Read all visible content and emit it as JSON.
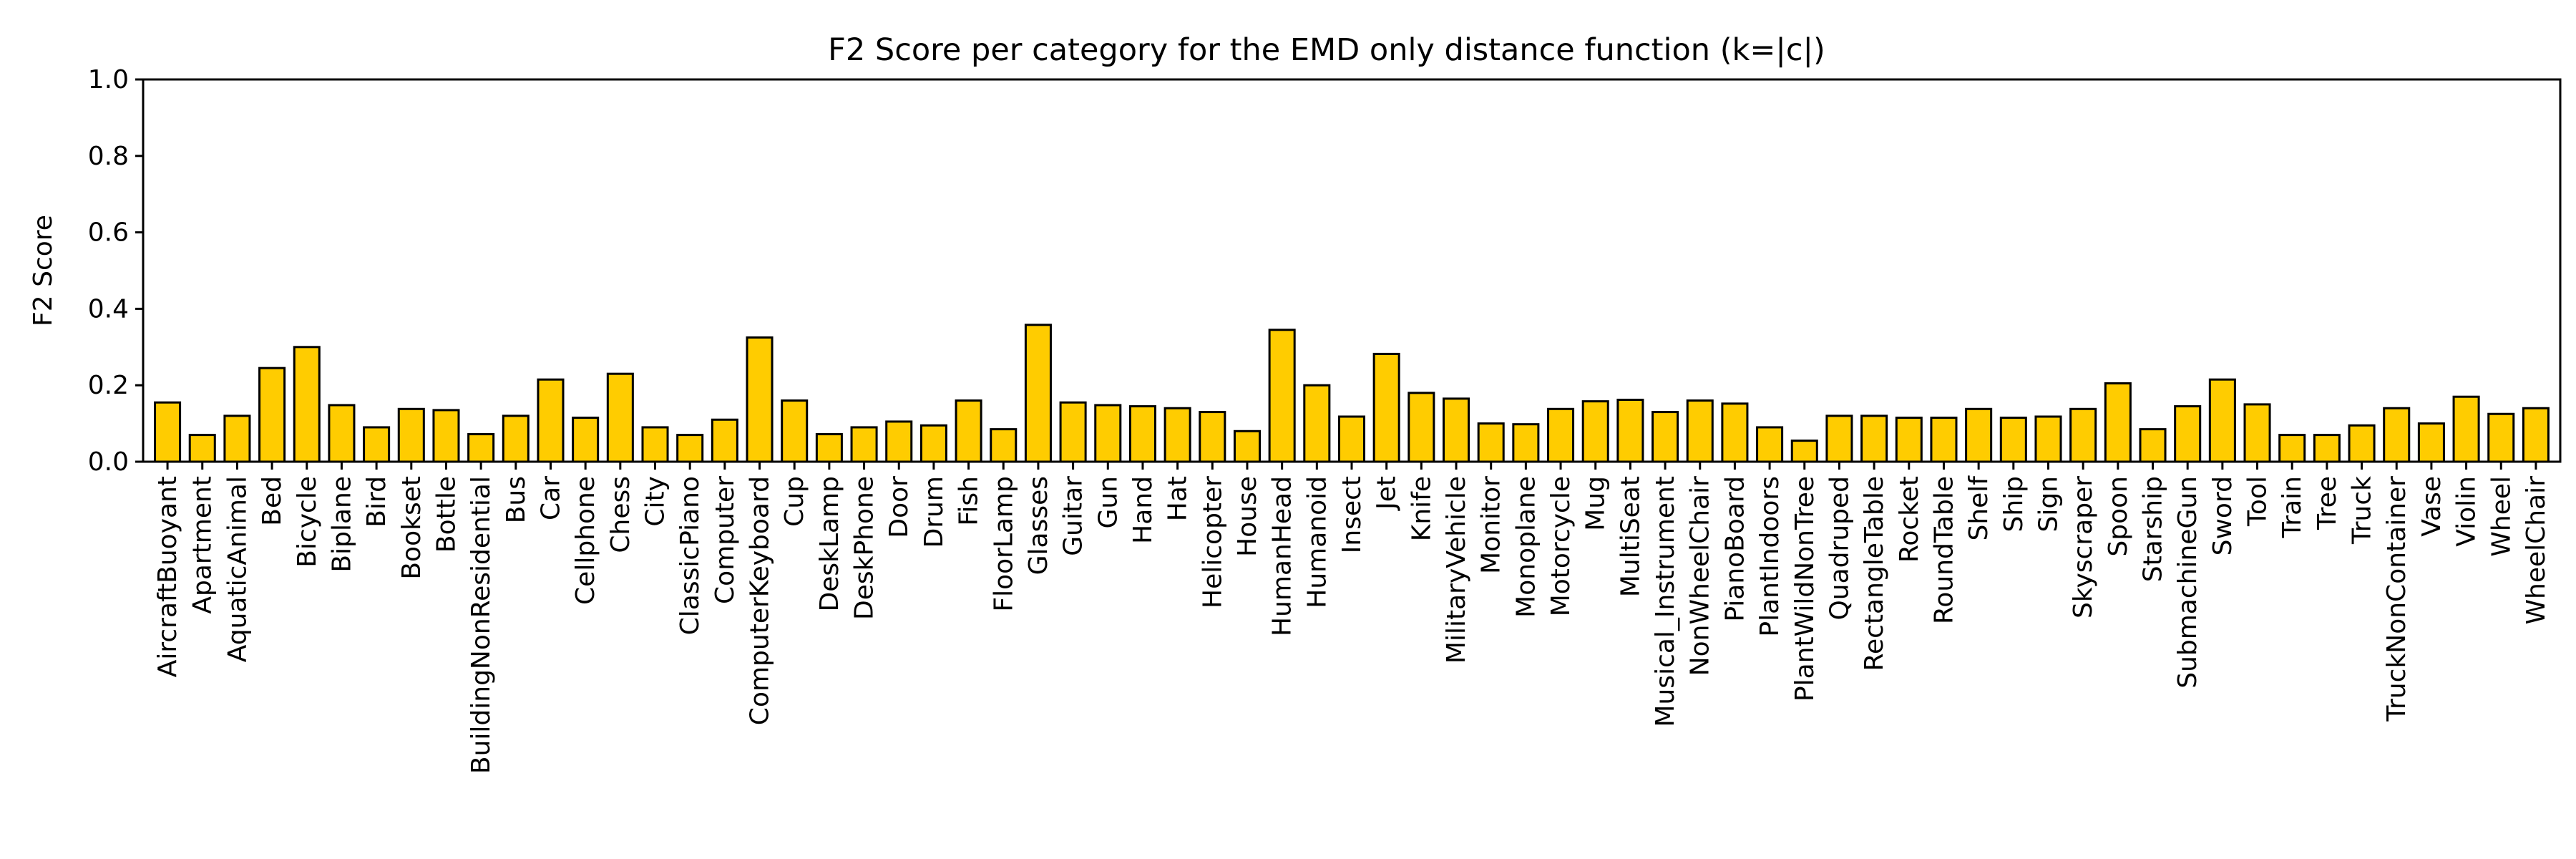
{
  "chart_data": {
    "type": "bar",
    "title": "F2 Score per category for the EMD only distance function (k=|c|)",
    "xlabel": "",
    "ylabel": "F2 Score",
    "ylim": [
      0,
      1.0
    ],
    "yticks": [
      "0.0",
      "0.2",
      "0.4",
      "0.6",
      "0.8",
      "1.0"
    ],
    "grid": false,
    "bar_color": "#FFCC00",
    "edge_color": "#000000",
    "categories": [
      "AircraftBuoyant",
      "Apartment",
      "AquaticAnimal",
      "Bed",
      "Bicycle",
      "Biplane",
      "Bird",
      "Bookset",
      "Bottle",
      "BuildingNonResidential",
      "Bus",
      "Car",
      "Cellphone",
      "Chess",
      "City",
      "ClassicPiano",
      "Computer",
      "ComputerKeyboard",
      "Cup",
      "DeskLamp",
      "DeskPhone",
      "Door",
      "Drum",
      "Fish",
      "FloorLamp",
      "Glasses",
      "Guitar",
      "Gun",
      "Hand",
      "Hat",
      "Helicopter",
      "House",
      "HumanHead",
      "Humanoid",
      "Insect",
      "Jet",
      "Knife",
      "MilitaryVehicle",
      "Monitor",
      "Monoplane",
      "Motorcycle",
      "Mug",
      "MultiSeat",
      "Musical_Instrument",
      "NonWheelChair",
      "PianoBoard",
      "PlantIndoors",
      "PlantWildNonTree",
      "Quadruped",
      "RectangleTable",
      "Rocket",
      "RoundTable",
      "Shelf",
      "Ship",
      "Sign",
      "Skyscraper",
      "Spoon",
      "Starship",
      "SubmachineGun",
      "Sword",
      "Tool",
      "Train",
      "Tree",
      "Truck",
      "TruckNonContainer",
      "Vase",
      "Violin",
      "Wheel",
      "WheelChair"
    ],
    "values": [
      0.155,
      0.07,
      0.12,
      0.245,
      0.3,
      0.148,
      0.09,
      0.138,
      0.135,
      0.072,
      0.12,
      0.215,
      0.115,
      0.23,
      0.09,
      0.07,
      0.11,
      0.325,
      0.16,
      0.072,
      0.09,
      0.105,
      0.095,
      0.16,
      0.085,
      0.358,
      0.155,
      0.148,
      0.145,
      0.14,
      0.13,
      0.08,
      0.345,
      0.2,
      0.118,
      0.282,
      0.18,
      0.165,
      0.1,
      0.098,
      0.138,
      0.158,
      0.162,
      0.13,
      0.16,
      0.152,
      0.09,
      0.055,
      0.12,
      0.12,
      0.115,
      0.115,
      0.138,
      0.115,
      0.118,
      0.138,
      0.205,
      0.085,
      0.145,
      0.215,
      0.15,
      0.07,
      0.07,
      0.095,
      0.14,
      0.1,
      0.17,
      0.125,
      0.14
    ]
  }
}
